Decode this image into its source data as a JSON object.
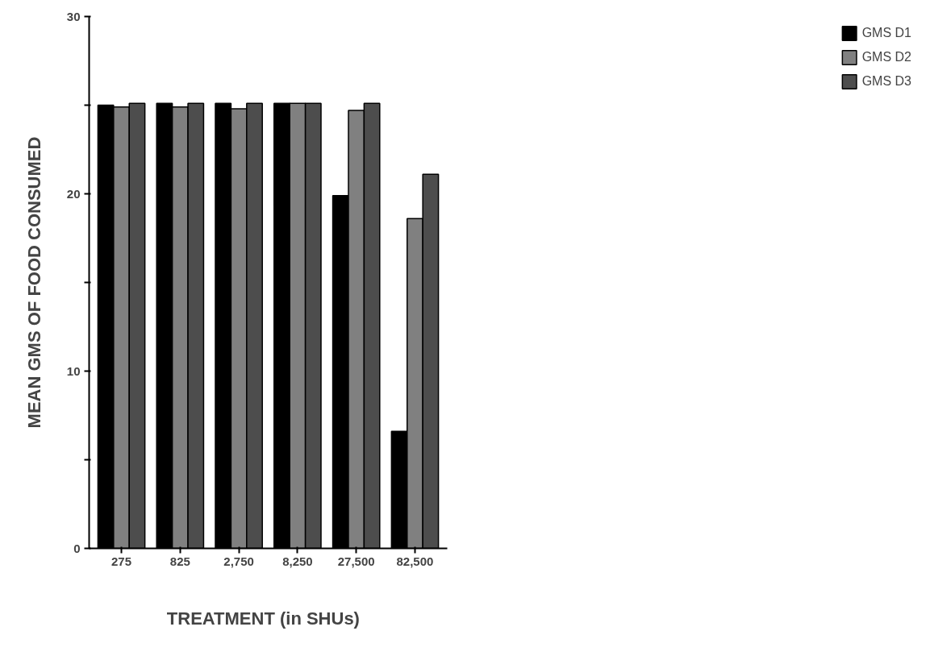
{
  "chart_data": {
    "type": "bar",
    "xlabel": "TREATMENT  (in  SHUs)",
    "ylabel": "MEAN GMS OF FOOD CONSUMED",
    "categories": [
      "275",
      "825",
      "2,750",
      "8,250",
      "27,500",
      "82,500"
    ],
    "series": [
      {
        "name": "GMS D1",
        "color": "#000000",
        "values": [
          25.0,
          25.1,
          25.1,
          25.1,
          19.9,
          6.6
        ]
      },
      {
        "name": "GMS D2",
        "color": "#808080",
        "values": [
          24.9,
          24.9,
          24.8,
          25.1,
          24.7,
          18.6
        ]
      },
      {
        "name": "GMS D3",
        "color": "#4d4d4d",
        "values": [
          25.1,
          25.1,
          25.1,
          25.1,
          25.1,
          21.1
        ]
      }
    ],
    "ylim": [
      0,
      30
    ],
    "yticks": [
      0,
      {
        "value": 5,
        "label": null
      },
      10,
      {
        "value": 15,
        "label": null
      },
      20,
      {
        "value": 25,
        "label": null
      },
      30
    ],
    "grid": false,
    "legend": "right"
  }
}
